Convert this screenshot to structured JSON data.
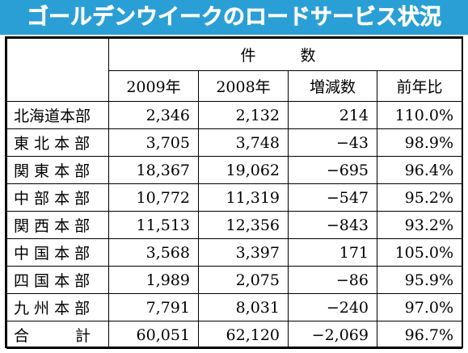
{
  "title": "ゴールデンウイークのロードサービス状況",
  "header": {
    "group": "件　数",
    "cols": [
      "2009年",
      "2008年",
      "増減数",
      "前年比"
    ]
  },
  "rows": [
    {
      "label": "北海道本部",
      "y2009": "2,346",
      "y2008": "2,132",
      "diff": "214",
      "ratio": "110.0%"
    },
    {
      "label": "東 北 本 部",
      "y2009": "3,705",
      "y2008": "3,748",
      "diff": "−43",
      "ratio": "98.9%"
    },
    {
      "label": "関 東 本 部",
      "y2009": "18,367",
      "y2008": "19,062",
      "diff": "−695",
      "ratio": "96.4%"
    },
    {
      "label": "中 部 本 部",
      "y2009": "10,772",
      "y2008": "11,319",
      "diff": "−547",
      "ratio": "95.2%"
    },
    {
      "label": "関 西 本 部",
      "y2009": "11,513",
      "y2008": "12,356",
      "diff": "−843",
      "ratio": "93.2%"
    },
    {
      "label": "中 国 本 部",
      "y2009": "3,568",
      "y2008": "3,397",
      "diff": "171",
      "ratio": "105.0%"
    },
    {
      "label": "四 国 本 部",
      "y2009": "1,989",
      "y2008": "2,075",
      "diff": "−86",
      "ratio": "95.9%"
    },
    {
      "label": "九 州 本 部",
      "y2009": "7,791",
      "y2008": "8,031",
      "diff": "−240",
      "ratio": "97.0%"
    }
  ],
  "total": {
    "label": "合　　　計",
    "y2009": "60,051",
    "y2008": "62,120",
    "diff": "−2,069",
    "ratio": "96.7%"
  },
  "colors": {
    "title_background": "#2a9fd6",
    "title_text": "#ffffff"
  }
}
